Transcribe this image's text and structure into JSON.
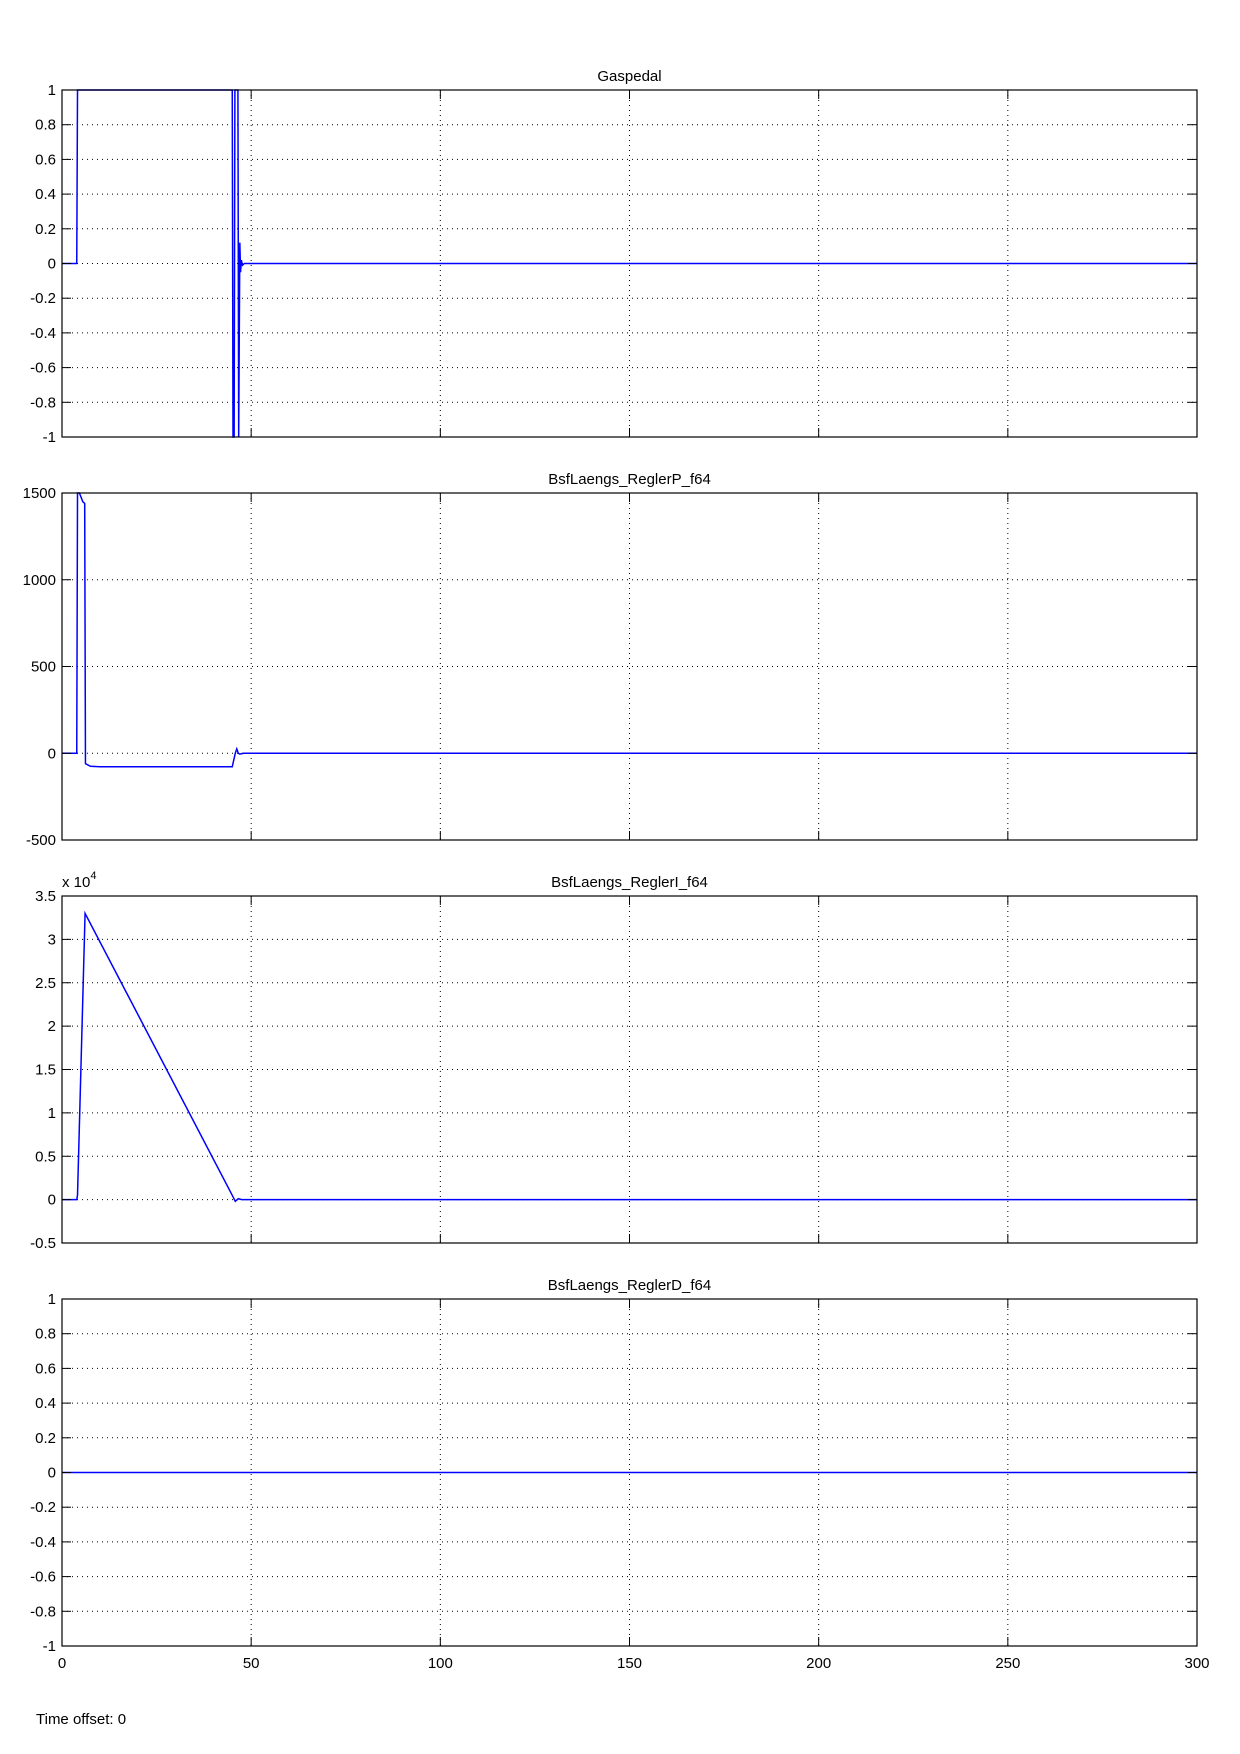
{
  "footer": {
    "time_offset": "Time offset: 0"
  },
  "colors": {
    "line": "#0000ff",
    "axes": "#000000",
    "grid": "#000000",
    "background": "#ffffff"
  },
  "chart_data": [
    {
      "type": "line",
      "title": "Gaspedal",
      "xlabel": "",
      "ylabel": "",
      "xlim": [
        0,
        300
      ],
      "ylim": [
        -1,
        1
      ],
      "xticks": [
        0,
        50,
        100,
        150,
        200,
        250,
        300
      ],
      "yticks": [
        -1,
        -0.8,
        -0.6,
        -0.4,
        -0.2,
        0,
        0.2,
        0.4,
        0.6,
        0.8,
        1
      ],
      "ytick_labels": [
        "-1",
        "-0.8",
        "-0.6",
        "-0.4",
        "-0.2",
        "0",
        "0.2",
        "0.4",
        "0.6",
        "0.8",
        "1"
      ],
      "show_xtick_labels": false,
      "grid": true,
      "exponent_label": "",
      "series": [
        {
          "x": [
            0,
            3.9,
            4.1,
            45.0,
            45.2,
            45.5,
            45.7,
            46.5,
            46.7,
            47.0,
            47.2,
            47.4,
            47.7,
            48.2,
            49,
            50,
            300
          ],
          "y": [
            0,
            0,
            1,
            1,
            -1,
            -1,
            1,
            1,
            -1,
            0.12,
            -0.05,
            0.02,
            -0.01,
            0,
            0,
            0,
            0
          ]
        }
      ]
    },
    {
      "type": "line",
      "title": "BsfLaengs_ReglerP_f64",
      "xlabel": "",
      "ylabel": "",
      "xlim": [
        0,
        300
      ],
      "ylim": [
        -500,
        1500
      ],
      "xticks": [
        0,
        50,
        100,
        150,
        200,
        250,
        300
      ],
      "yticks": [
        -500,
        0,
        500,
        1000,
        1500
      ],
      "ytick_labels": [
        "-500",
        "0",
        "500",
        "1000",
        "1500"
      ],
      "show_xtick_labels": false,
      "grid": true,
      "exponent_label": "",
      "series": [
        {
          "x": [
            0,
            3.9,
            4.1,
            4.6,
            5.5,
            6.0,
            6.2,
            7.5,
            10,
            45.0,
            45.8,
            46.2,
            46.6,
            47.0,
            48,
            300
          ],
          "y": [
            0,
            0,
            1500,
            1500,
            1450,
            1440,
            -60,
            -75,
            -78,
            -78,
            0,
            25,
            0,
            -5,
            0,
            0
          ]
        }
      ]
    },
    {
      "type": "line",
      "title": "BsfLaengs_ReglerI_f64",
      "xlabel": "",
      "ylabel": "",
      "xlim": [
        0,
        300
      ],
      "ylim": [
        -0.5,
        3.5
      ],
      "xticks": [
        0,
        50,
        100,
        150,
        200,
        250,
        300
      ],
      "yticks": [
        -0.5,
        0,
        0.5,
        1,
        1.5,
        2,
        2.5,
        3,
        3.5
      ],
      "ytick_labels": [
        "-0.5",
        "0",
        "0.5",
        "1",
        "1.5",
        "2",
        "2.5",
        "3",
        "3.5"
      ],
      "show_xtick_labels": false,
      "grid": true,
      "exponent_label": "x 10",
      "exponent_power": "4",
      "series": [
        {
          "x": [
            0,
            3.9,
            4.1,
            6.1,
            45.0,
            45.8,
            46.6,
            47.5,
            300
          ],
          "y": [
            0,
            0,
            0.05,
            3.3,
            0.05,
            -0.02,
            0.01,
            0,
            0
          ]
        }
      ]
    },
    {
      "type": "line",
      "title": "BsfLaengs_ReglerD_f64",
      "xlabel": "",
      "ylabel": "",
      "xlim": [
        0,
        300
      ],
      "ylim": [
        -1,
        1
      ],
      "xticks": [
        0,
        50,
        100,
        150,
        200,
        250,
        300
      ],
      "xtick_labels": [
        "0",
        "50",
        "100",
        "150",
        "200",
        "250",
        "300"
      ],
      "yticks": [
        -1,
        -0.8,
        -0.6,
        -0.4,
        -0.2,
        0,
        0.2,
        0.4,
        0.6,
        0.8,
        1
      ],
      "ytick_labels": [
        "-1",
        "-0.8",
        "-0.6",
        "-0.4",
        "-0.2",
        "0",
        "0.2",
        "0.4",
        "0.6",
        "0.8",
        "1"
      ],
      "show_xtick_labels": true,
      "grid": true,
      "exponent_label": "",
      "series": [
        {
          "x": [
            0,
            300
          ],
          "y": [
            0,
            0
          ]
        }
      ]
    }
  ]
}
